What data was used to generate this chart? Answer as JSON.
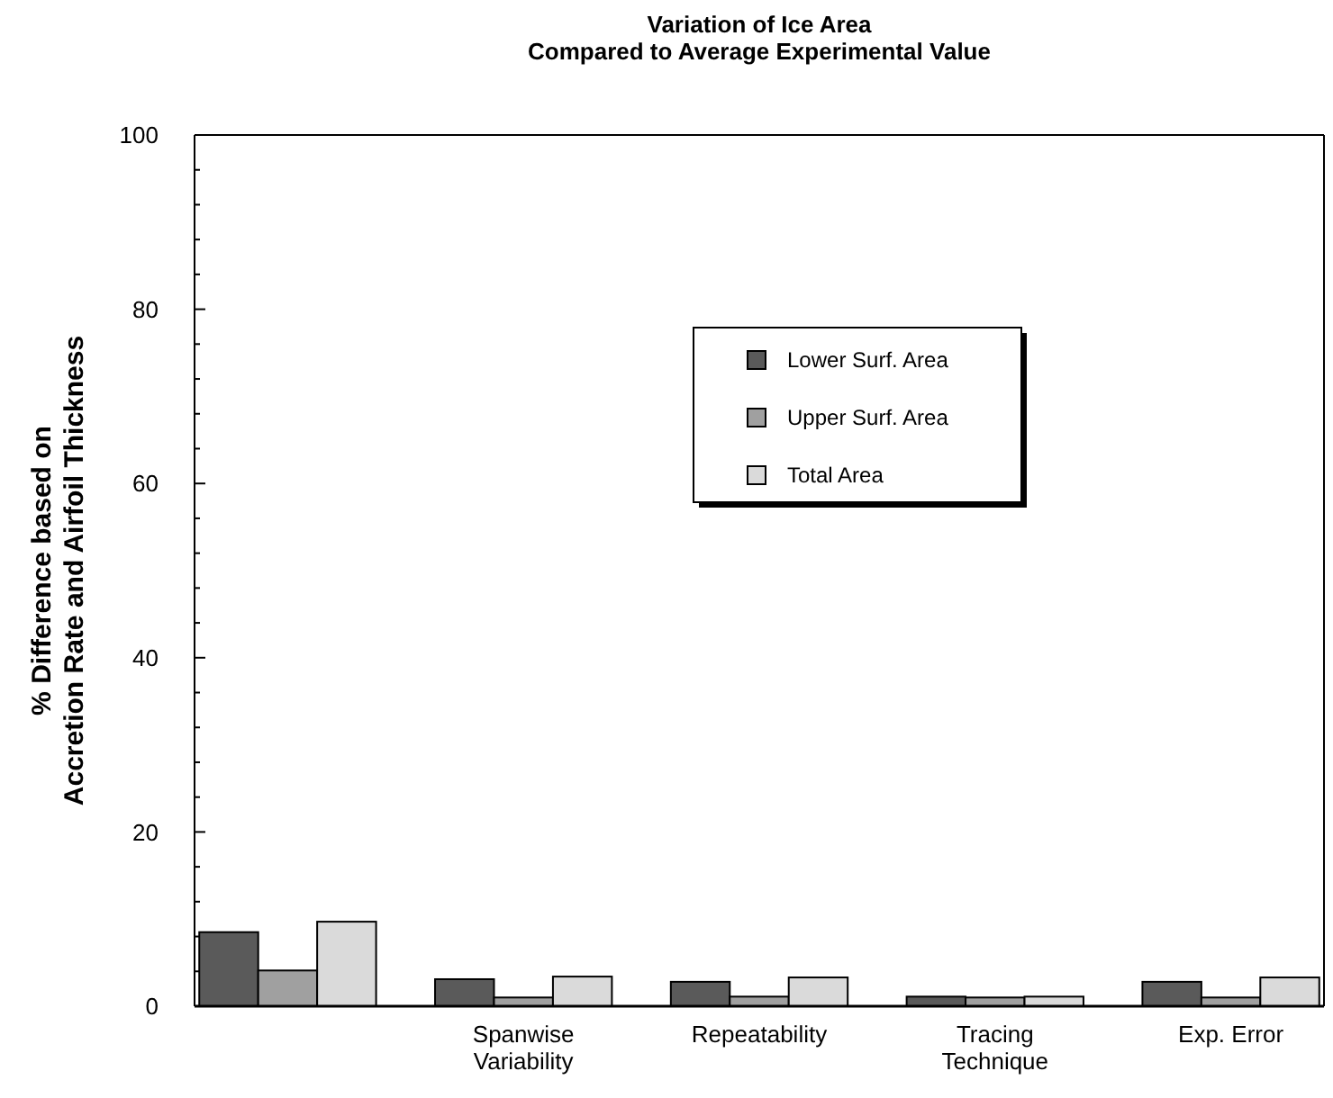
{
  "chart_data": {
    "type": "bar",
    "title": "Variation of Ice Area\nCompared to Average Experimental Value",
    "ylabel": "% Difference based on\nAccretion Rate and Airfoil Thickness",
    "categories": [
      null,
      "Spanwise\nVariability",
      "Repeatability",
      "Tracing\nTechnique",
      "Exp. Error"
    ],
    "series": [
      {
        "name": "Lower Surf. Area",
        "color": "#5a5a5a",
        "values": [
          8.5,
          3.1,
          2.8,
          1.1,
          2.8
        ]
      },
      {
        "name": "Upper Surf. Area",
        "color": "#a0a0a0",
        "values": [
          4.1,
          1.0,
          1.1,
          1.0,
          1.0
        ]
      },
      {
        "name": "Total Area",
        "color": "#dadada",
        "values": [
          9.7,
          3.4,
          3.3,
          1.1,
          3.3
        ]
      }
    ],
    "ylim": [
      0,
      100
    ],
    "yticks": [
      0,
      {
        "value": 4,
        "label": null
      },
      {
        "value": 8,
        "label": null
      },
      {
        "value": 12,
        "label": null
      },
      {
        "value": 16,
        "label": null
      },
      20,
      {
        "value": 24,
        "label": null
      },
      {
        "value": 28,
        "label": null
      },
      {
        "value": 32,
        "label": null
      },
      {
        "value": 36,
        "label": null
      },
      40,
      {
        "value": 44,
        "label": null
      },
      {
        "value": 48,
        "label": null
      },
      {
        "value": 52,
        "label": null
      },
      {
        "value": 56,
        "label": null
      },
      60,
      {
        "value": 64,
        "label": null
      },
      {
        "value": 68,
        "label": null
      },
      {
        "value": 72,
        "label": null
      },
      {
        "value": 76,
        "label": null
      },
      80,
      {
        "value": 84,
        "label": null
      },
      {
        "value": 88,
        "label": null
      },
      {
        "value": 92,
        "label": null
      },
      {
        "value": 96,
        "label": null
      },
      100
    ],
    "grid": false,
    "legend": "top"
  }
}
